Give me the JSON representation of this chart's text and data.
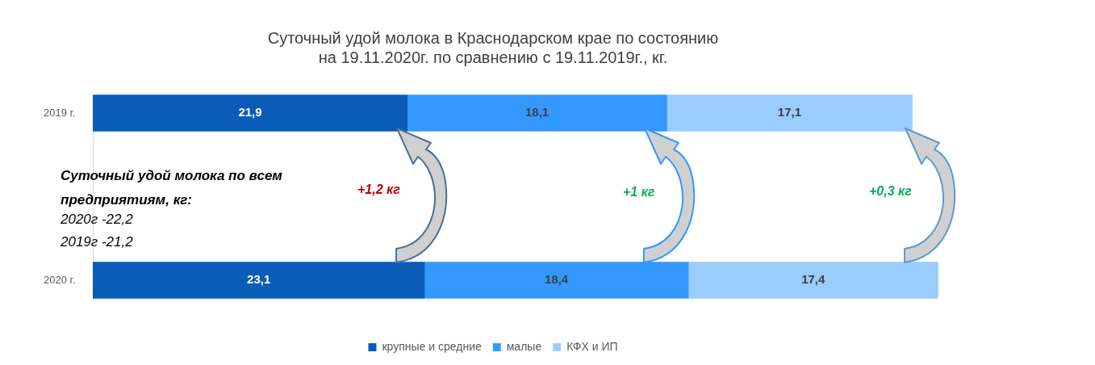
{
  "chart_data": {
    "type": "bar",
    "orientation": "horizontal",
    "stacked": true,
    "title": "Суточный удой молока в Краснодарском крае по состоянию\nна 19.11.2020г. по сравнению с 19.11.2019г., кг.",
    "categories": [
      "2019 г.",
      "2020 г."
    ],
    "series": [
      {
        "name": "крупные и средние",
        "color": "#0a5cb8",
        "values": [
          21.9,
          23.1
        ],
        "value_labels": [
          "21,9",
          "23,1"
        ]
      },
      {
        "name": "малые",
        "color": "#3399ff",
        "values": [
          18.1,
          18.4
        ],
        "value_labels": [
          "18,1",
          "18,4"
        ]
      },
      {
        "name": "КФХ и ИП",
        "color": "#99ccff",
        "values": [
          17.1,
          17.4
        ],
        "value_labels": [
          "17,1",
          "17,4"
        ]
      }
    ],
    "legend": "bottom",
    "grid": false,
    "tick_labels": "y",
    "annotations": [
      "Суточный удой молока по всем предприятиям, кг:",
      "2020г  -22,2",
      "2019г -21,2",
      "+1,2 кг",
      "+1 кг",
      "+0,3 кг"
    ]
  }
}
